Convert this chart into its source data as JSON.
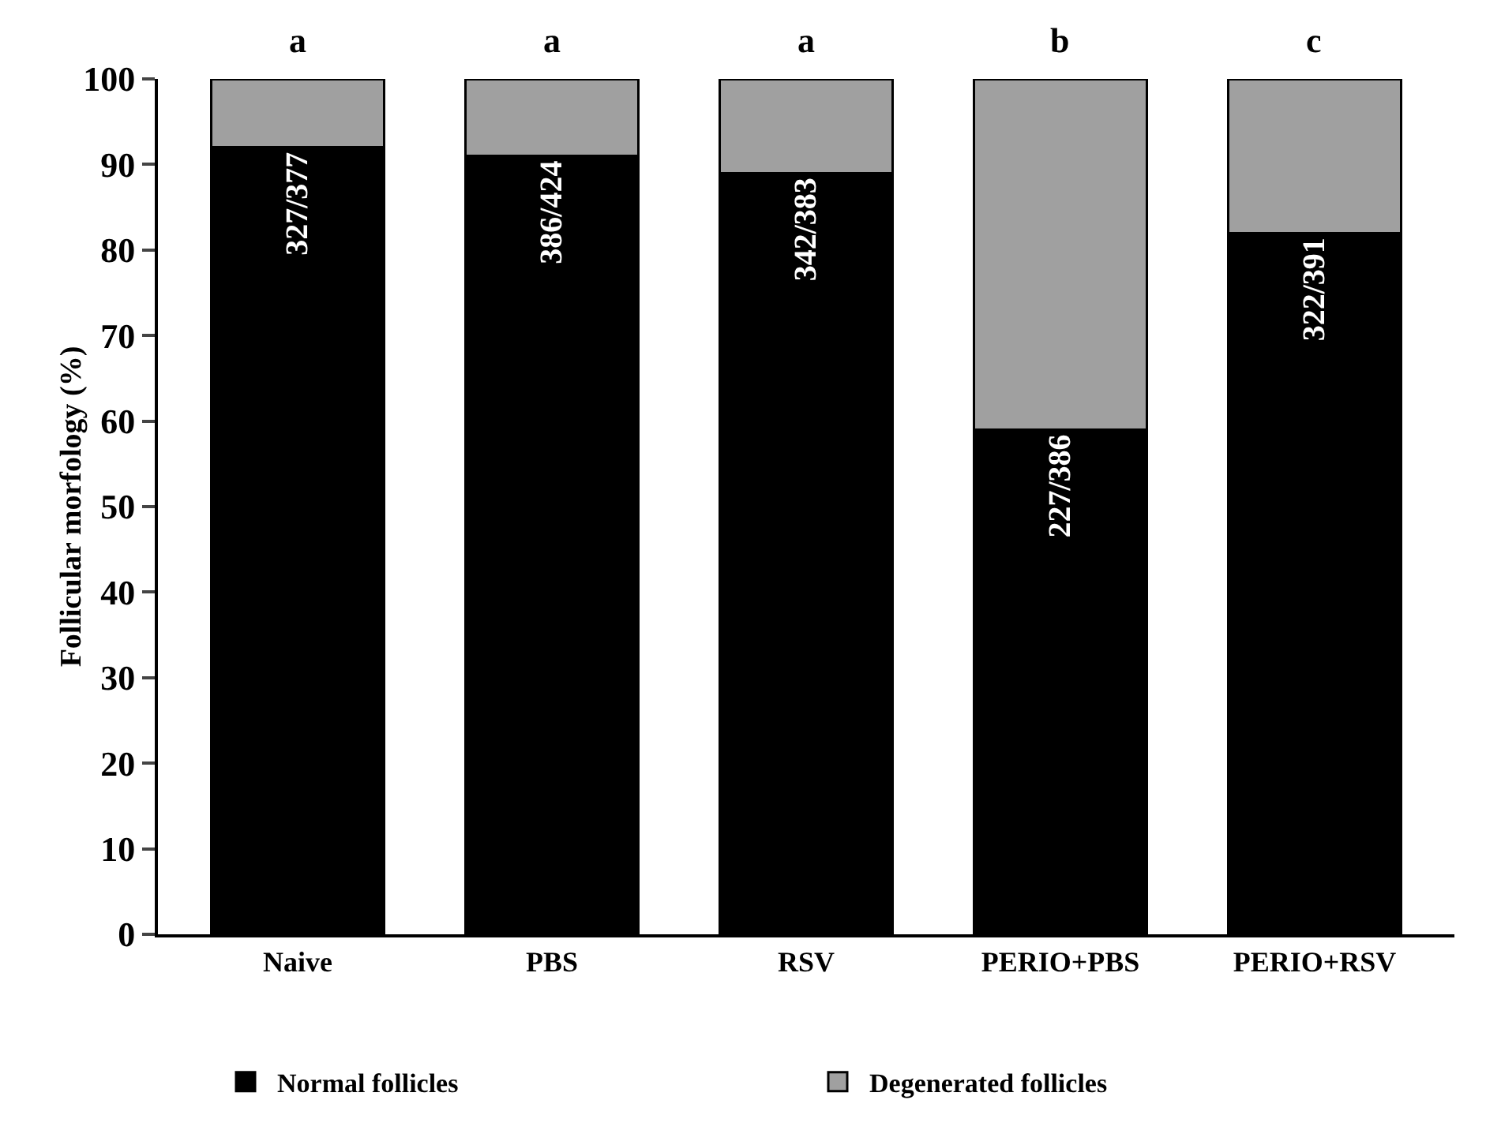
{
  "chart_data": {
    "type": "bar",
    "stacked": true,
    "ylabel": "Follicular morfology (%)",
    "categories": [
      "Naive",
      "PBS",
      "RSV",
      "PERIO+PBS",
      "PERIO+RSV"
    ],
    "series": [
      {
        "name": "Normal follicles",
        "color": "#000000",
        "values": [
          92,
          91,
          89,
          59,
          82
        ],
        "value_labels": [
          "327/377",
          "386/424",
          "342/383",
          "227/386",
          "322/391"
        ]
      },
      {
        "name": "Degenerated follicles",
        "color": "#a0a0a0",
        "values": [
          8,
          9,
          11,
          41,
          18
        ]
      }
    ],
    "ylim": [
      0,
      100
    ],
    "yticks": [
      0,
      10,
      20,
      30,
      40,
      50,
      60,
      70,
      80,
      90,
      100
    ],
    "grid": false,
    "legend": "bottom",
    "annotations": [
      "a",
      "a",
      "a",
      "b",
      "c"
    ]
  }
}
